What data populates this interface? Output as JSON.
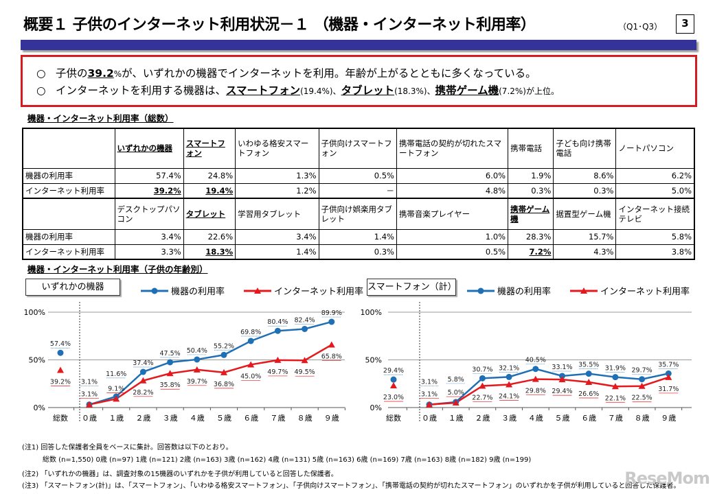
{
  "header": {
    "title": "概要１ 子供のインターネット利用状況－１ （機器・インターネット利用率）",
    "question_ref": "（Q1･Q3）",
    "page_number": "3"
  },
  "summary": {
    "bullet": "○",
    "line1": {
      "a": "子供の",
      "b": "39.2",
      "c": "%",
      "d": "が、いずれかの機器でインターネットを利用。年齢が上がるとともに多くなっている。"
    },
    "line2": {
      "a": "インターネットを利用する機器は、",
      "b": "スマートフォン",
      "c": "(19.4%)、",
      "d": "タブレット",
      "e": "(18.3%)、",
      "f": "携帯ゲーム機",
      "g": "(7.2%)が上位。"
    }
  },
  "table": {
    "title": "機器・インターネット利用率（総数）",
    "row_labels": [
      "機器の利用率",
      "インターネット利用率"
    ],
    "blocks": [
      {
        "headers": [
          "いずれかの機器",
          "スマートフォン",
          "いわゆる格安スマートフォン",
          "子供向けスマートフォン",
          "携帯電話の契約が切れたスマートフォン",
          "携帯電話",
          "子ども向け携帯電話",
          "ノートパソコン"
        ],
        "emphasis": [
          0,
          1
        ],
        "device_rate": [
          "57.4%",
          "24.8%",
          "1.3%",
          "0.5%",
          "6.0%",
          "1.9%",
          "8.6%",
          "6.2%"
        ],
        "internet_rate": [
          "39.2%",
          "19.4%",
          "1.2%",
          "－",
          "4.8%",
          "0.3%",
          "0.3%",
          "5.0%"
        ]
      },
      {
        "headers": [
          "デスクトップパソコン",
          "タブレット",
          "学習用タブレット",
          "子供向け娯楽用タブレット",
          "携帯音楽プレイヤー",
          "携帯ゲーム機",
          "据置型ゲーム機",
          "インターネット接続テレビ"
        ],
        "emphasis": [
          1,
          5
        ],
        "device_rate": [
          "3.4%",
          "22.6%",
          "3.4%",
          "1.4%",
          "1.0%",
          "28.3%",
          "15.7%",
          "5.8%"
        ],
        "internet_rate": [
          "3.3%",
          "18.3%",
          "1.4%",
          "0.3%",
          "0.5%",
          "7.2%",
          "4.3%",
          "3.8%"
        ]
      }
    ]
  },
  "charts_section_title": "機器・インターネット利用率（子供の年齢別）",
  "chart_data": [
    {
      "type": "line",
      "title": "いずれかの機器",
      "categories": [
        "総数",
        "０歳",
        "１歳",
        "２歳",
        "３歳",
        "４歳",
        "５歳",
        "６歳",
        "７歳",
        "８歳",
        "９歳"
      ],
      "yticks": [
        "0%",
        "50%",
        "100%"
      ],
      "ylim": [
        0,
        100
      ],
      "grid": true,
      "series": [
        {
          "name": "機器の利用率",
          "color": "#1f6fb5",
          "marker": "circle",
          "values": [
            57.4,
            3.1,
            11.6,
            37.4,
            47.5,
            50.4,
            55.2,
            69.8,
            80.4,
            82.4,
            89.9
          ]
        },
        {
          "name": "インターネット利用率",
          "color": "#e3191d",
          "marker": "triangle",
          "values": [
            39.2,
            3.1,
            9.1,
            28.2,
            35.8,
            39.7,
            36.8,
            45.0,
            49.7,
            49.5,
            65.8
          ]
        }
      ]
    },
    {
      "type": "line",
      "title": "スマートフォン（計）",
      "categories": [
        "総数",
        "０歳",
        "１歳",
        "２歳",
        "３歳",
        "４歳",
        "５歳",
        "６歳",
        "７歳",
        "８歳",
        "９歳"
      ],
      "yticks": [
        "0%",
        "50%",
        "100%"
      ],
      "ylim": [
        0,
        100
      ],
      "grid": true,
      "series": [
        {
          "name": "機器の利用率",
          "color": "#1f6fb5",
          "marker": "circle",
          "values": [
            29.4,
            3.1,
            5.8,
            30.7,
            32.1,
            40.5,
            33.1,
            35.5,
            31.9,
            29.7,
            35.7
          ]
        },
        {
          "name": "インターネット利用率",
          "color": "#e3191d",
          "marker": "triangle",
          "values": [
            23.0,
            3.1,
            5.0,
            22.7,
            24.1,
            29.8,
            29.4,
            26.6,
            22.1,
            22.5,
            31.7
          ]
        }
      ]
    }
  ],
  "notes": [
    "(注1) 回答した保護者全員をベースに集計。回答数は以下のとおり。",
    "総数 (n=1,550) 0歳 (n=97) 1歳 (n=121) 2歳 (n=163) 3歳 (n=162) 4歳 (n=131) 5歳 (n=163) 6歳 (n=169) 7歳 (n=163) 8歳 (n=182) 9歳 (n=199)",
    "(注2) 「いずれかの機器」は、調査対象の15機器のいずれかを子供が利用していると回答した保護者。",
    "(注3) 「スマートフォン(計)」は、「スマートフォン」、「いわゆる格安スマートフォン」、「子供向けスマートフォン」、「携帯電話の契約が切れたスマートフォン」のいずれかを子供が利用していると回答した保護者。"
  ],
  "watermark": "ReseMom"
}
